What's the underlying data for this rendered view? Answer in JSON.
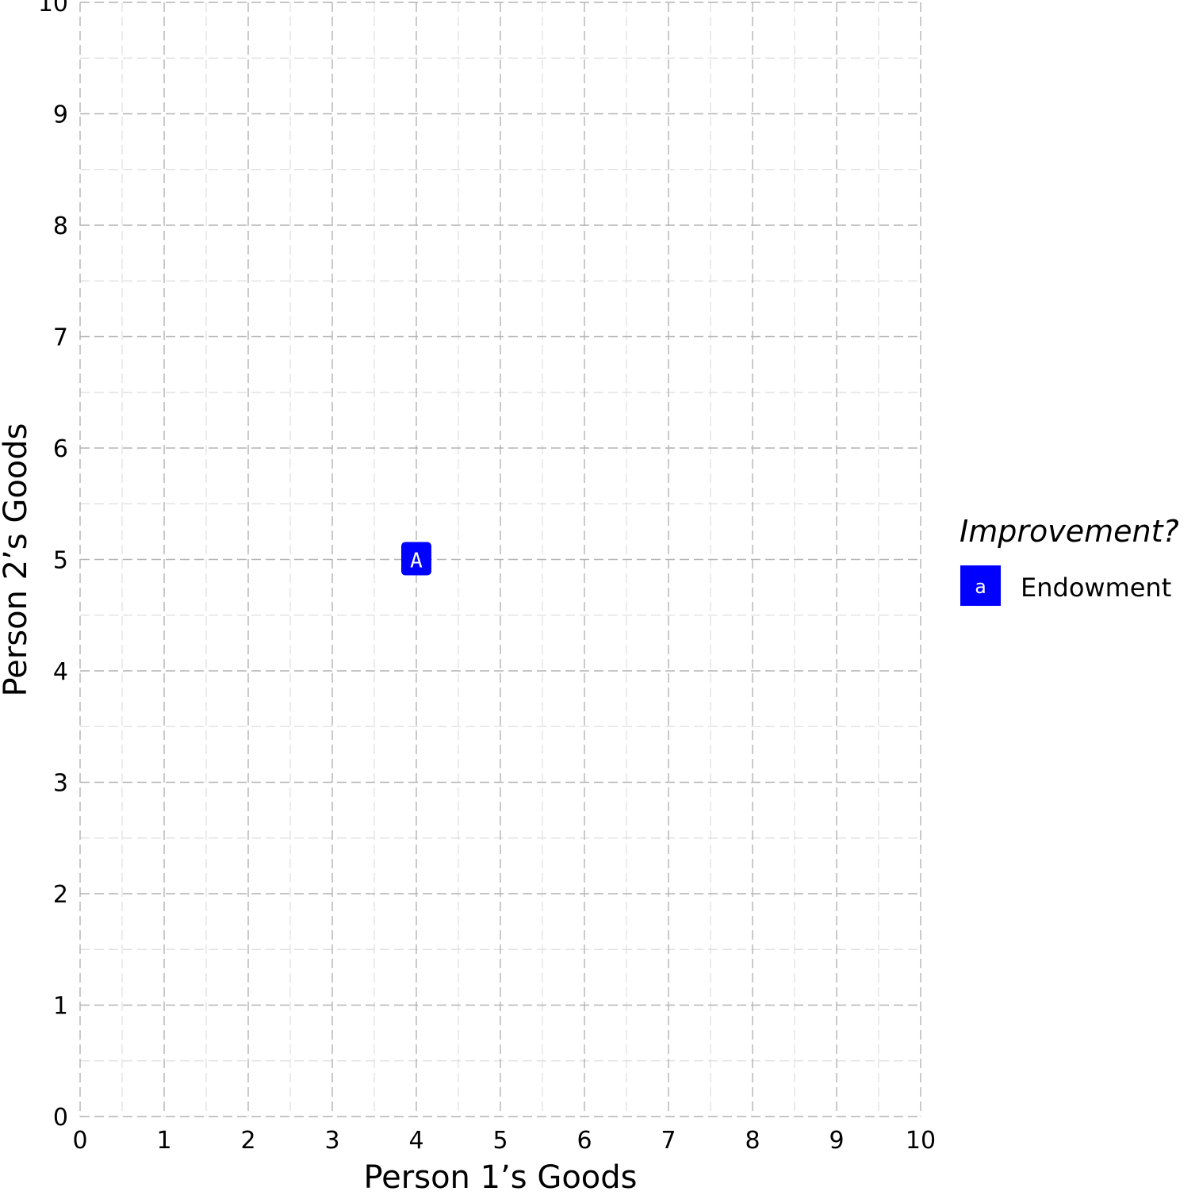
{
  "chart_data": {
    "type": "scatter",
    "xlabel": "Person 1’s Goods",
    "ylabel": "Person 2’s Goods",
    "xlim": [
      0,
      10
    ],
    "ylim": [
      0,
      10
    ],
    "x_ticks": [
      "0",
      "1",
      "2",
      "3",
      "4",
      "5",
      "6",
      "7",
      "8",
      "9",
      "10"
    ],
    "y_ticks": [
      "0",
      "1",
      "2",
      "3",
      "4",
      "5",
      "6",
      "7",
      "8",
      "9",
      "10"
    ],
    "grid": "major and minor, dashed",
    "points": [
      {
        "x": 4,
        "y": 5,
        "label": "A",
        "group": "Endowment",
        "color": "#0000ff"
      }
    ],
    "legend": {
      "title": "Improvement?",
      "placement": "right",
      "entries": [
        {
          "key_label": "a",
          "label": "Endowment",
          "color": "#0000ff"
        }
      ]
    }
  }
}
